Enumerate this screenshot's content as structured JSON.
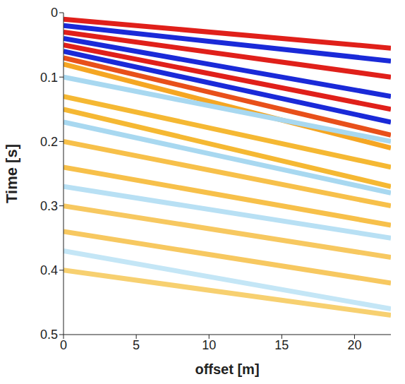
{
  "chart_data": {
    "type": "line",
    "x_label": "offset [m]",
    "y_label": "Time [s]",
    "x": [
      0,
      22.5
    ],
    "xlim": [
      0,
      22.5
    ],
    "xticks": [
      0,
      5,
      10,
      15,
      20
    ],
    "ylim": [
      0,
      0.5
    ],
    "yticks": [
      0,
      0.1,
      0.2,
      0.3,
      0.4,
      0.5
    ],
    "grid": false,
    "series": [
      {
        "color": "#e0201a",
        "values": [
          0.01,
          0.055
        ]
      },
      {
        "color": "#1a2ad8",
        "values": [
          0.02,
          0.075
        ]
      },
      {
        "color": "#e0201a",
        "values": [
          0.03,
          0.1
        ]
      },
      {
        "color": "#1a2ad8",
        "values": [
          0.04,
          0.13
        ]
      },
      {
        "color": "#e0201a",
        "values": [
          0.05,
          0.15
        ]
      },
      {
        "color": "#1a2ad8",
        "values": [
          0.06,
          0.17
        ]
      },
      {
        "color": "#e8501a",
        "values": [
          0.07,
          0.19
        ]
      },
      {
        "color": "#f5a623",
        "values": [
          0.08,
          0.21
        ]
      },
      {
        "color": "#a8d8f0",
        "values": [
          0.1,
          0.2
        ]
      },
      {
        "color": "#f5b833",
        "values": [
          0.13,
          0.24
        ]
      },
      {
        "color": "#f5b833",
        "values": [
          0.15,
          0.27
        ]
      },
      {
        "color": "#a8d8f0",
        "values": [
          0.17,
          0.28
        ]
      },
      {
        "color": "#f7c04a",
        "values": [
          0.2,
          0.3
        ]
      },
      {
        "color": "#f7c04a",
        "values": [
          0.24,
          0.33
        ]
      },
      {
        "color": "#b8e0f4",
        "values": [
          0.27,
          0.35
        ]
      },
      {
        "color": "#f7c860",
        "values": [
          0.3,
          0.38
        ]
      },
      {
        "color": "#f7c860",
        "values": [
          0.34,
          0.42
        ]
      },
      {
        "color": "#c4e6f6",
        "values": [
          0.37,
          0.46
        ]
      },
      {
        "color": "#f7d070",
        "values": [
          0.4,
          0.47
        ]
      }
    ]
  }
}
